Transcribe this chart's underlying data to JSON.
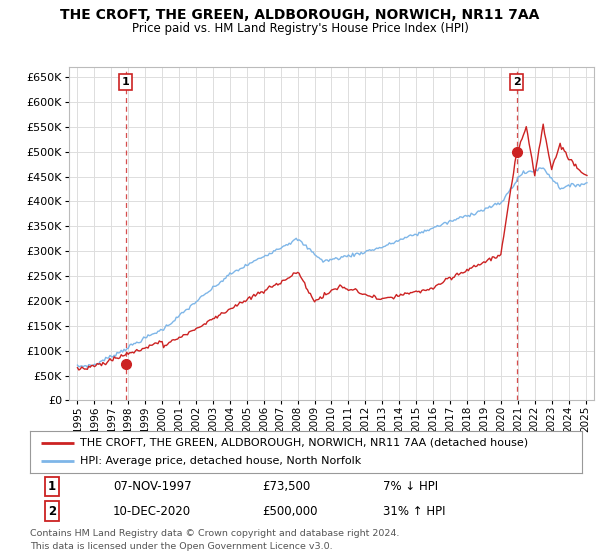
{
  "title_line1": "THE CROFT, THE GREEN, ALDBOROUGH, NORWICH, NR11 7AA",
  "title_line2": "Price paid vs. HM Land Registry's House Price Index (HPI)",
  "legend_line1": "THE CROFT, THE GREEN, ALDBOROUGH, NORWICH, NR11 7AA (detached house)",
  "legend_line2": "HPI: Average price, detached house, North Norfolk",
  "annotation1_date": "07-NOV-1997",
  "annotation1_price": "£73,500",
  "annotation1_hpi": "7% ↓ HPI",
  "annotation2_date": "10-DEC-2020",
  "annotation2_price": "£500,000",
  "annotation2_hpi": "31% ↑ HPI",
  "footnote_line1": "Contains HM Land Registry data © Crown copyright and database right 2024.",
  "footnote_line2": "This data is licensed under the Open Government Licence v3.0.",
  "sale1_year": 1997.85,
  "sale1_price": 73500,
  "sale2_year": 2020.94,
  "sale2_price": 500000,
  "price_color": "#cc2222",
  "hpi_color": "#7eb6e8",
  "background_color": "#ffffff",
  "grid_color": "#dddddd",
  "ylim_min": 0,
  "ylim_max": 670000,
  "xlim_min": 1994.5,
  "xlim_max": 2025.5
}
